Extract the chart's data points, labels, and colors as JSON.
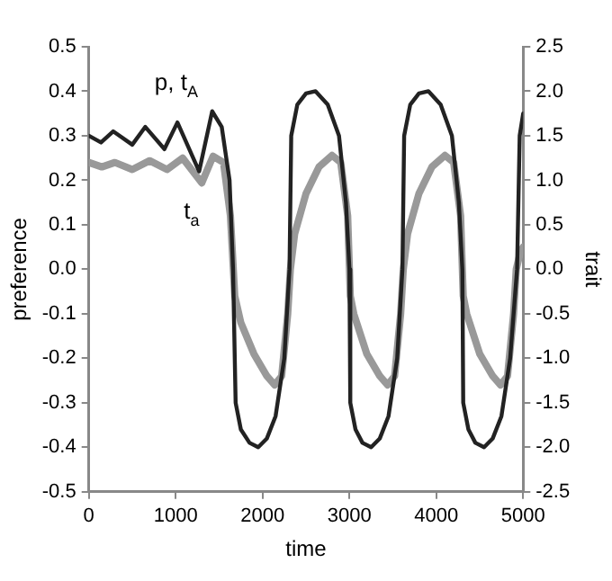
{
  "chart_data": {
    "type": "line",
    "xlabel": "time",
    "ylabel": "preference",
    "y2label": "trait",
    "grid": false,
    "legend": false,
    "marker": "none",
    "line_style": "solid",
    "xlim": [
      0,
      5000
    ],
    "xticks": [
      0,
      1000,
      2000,
      3000,
      4000,
      5000
    ],
    "ylim": [
      -0.5,
      0.5
    ],
    "yticks": [
      -0.5,
      -0.4,
      -0.3,
      -0.2,
      -0.1,
      {
        "value": 0,
        "label": "0.0"
      },
      0.1,
      0.2,
      0.3,
      0.4,
      0.5
    ],
    "y2lim": [
      -2.5,
      2.5
    ],
    "y2ticks": [
      -2.5,
      {
        "value": -2,
        "label": "-2.0"
      },
      -1.5,
      {
        "value": -1,
        "label": "-1.0"
      },
      -0.5,
      {
        "value": 0,
        "label": "0.0"
      },
      0.5,
      {
        "value": 1,
        "label": "1.0"
      },
      1.5,
      {
        "value": 2,
        "label": "2.0"
      },
      2.5
    ],
    "series": [
      {
        "name": "t$_{a}$",
        "color": "#999999",
        "axis": "y2",
        "x": [
          0,
          150,
          300,
          500,
          700,
          900,
          1080,
          1300,
          1430,
          1550,
          1630,
          1680,
          1750,
          1900,
          2050,
          2140,
          2220,
          2290,
          2320,
          2370,
          2500,
          2650,
          2800,
          2900,
          2980,
          3010,
          3050,
          3200,
          3350,
          3440,
          3520,
          3590,
          3620,
          3670,
          3800,
          3950,
          4100,
          4200,
          4280,
          4310,
          4350,
          4500,
          4650,
          4740,
          4820,
          4890,
          4920,
          4970,
          5000
        ],
        "values": [
          1.2,
          1.15,
          1.2,
          1.12,
          1.22,
          1.12,
          1.25,
          0.97,
          1.27,
          1.2,
          0.6,
          -0.3,
          -0.6,
          -0.95,
          -1.2,
          -1.3,
          -1.2,
          -0.5,
          0,
          0.4,
          0.85,
          1.15,
          1.28,
          1.2,
          0.6,
          -0.3,
          -0.5,
          -0.95,
          -1.2,
          -1.3,
          -1.2,
          -0.5,
          0,
          0.4,
          0.85,
          1.15,
          1.28,
          1.2,
          0.6,
          -0.3,
          -0.5,
          -0.95,
          -1.2,
          -1.3,
          -1.2,
          -0.5,
          0,
          0.2,
          0.25
        ]
      },
      {
        "name": "p, t$_{A}$",
        "color": "#222222",
        "x": [
          0,
          140,
          280,
          500,
          650,
          870,
          1020,
          1270,
          1420,
          1530,
          1620,
          1660,
          1690,
          1750,
          1850,
          1950,
          2050,
          2150,
          2250,
          2310,
          2330,
          2400,
          2500,
          2610,
          2750,
          2880,
          2960,
          3000,
          3010,
          3070,
          3150,
          3250,
          3350,
          3450,
          3550,
          3610,
          3630,
          3700,
          3800,
          3910,
          4050,
          4180,
          4260,
          4300,
          4310,
          4370,
          4450,
          4550,
          4650,
          4750,
          4850,
          4930,
          4960,
          5000
        ],
        "values": [
          0.3,
          0.285,
          0.31,
          0.28,
          0.32,
          0.27,
          0.33,
          0.22,
          0.355,
          0.32,
          0.2,
          0,
          -0.3,
          -0.36,
          -0.39,
          -0.4,
          -0.38,
          -0.33,
          -0.2,
          0,
          0.3,
          0.37,
          0.395,
          0.4,
          0.37,
          0.3,
          0.15,
          0,
          -0.3,
          -0.36,
          -0.39,
          -0.4,
          -0.38,
          -0.33,
          -0.2,
          0,
          0.3,
          0.37,
          0.395,
          0.4,
          0.37,
          0.3,
          0.15,
          0,
          -0.3,
          -0.36,
          -0.39,
          -0.4,
          -0.38,
          -0.33,
          -0.2,
          0,
          0.3,
          0.35
        ]
      }
    ]
  }
}
